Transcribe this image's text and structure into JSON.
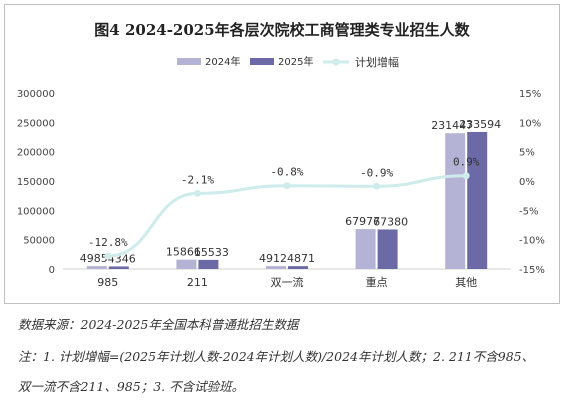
{
  "chart_data": {
    "type": "bar",
    "title": "图4  2024-2025年各层次院校工商管理类专业招生人数",
    "categories": [
      "985",
      "211",
      "双一流",
      "重点",
      "其他"
    ],
    "series": [
      {
        "name": "2024年",
        "type": "bar",
        "axis": "left",
        "values": [
          4985,
          15866,
          4912,
          67977,
          231447
        ],
        "color": "#b4b3d6"
      },
      {
        "name": "2025年",
        "type": "bar",
        "axis": "left",
        "values": [
          4346,
          15533,
          4871,
          67380,
          233594
        ],
        "color": "#6b6aa6"
      },
      {
        "name": "计划增幅",
        "type": "line",
        "axis": "right",
        "values": [
          -12.8,
          -2.1,
          -0.8,
          -0.9,
          0.9
        ],
        "labels": [
          "-12.8%",
          "-2.1%",
          "-0.8%",
          "-0.9%",
          "0.9%"
        ],
        "color": "#cdeceb"
      }
    ],
    "bar_labels": [
      [
        "4985",
        "15866",
        "4912",
        "67977",
        "231447"
      ],
      [
        "4346",
        "15533",
        "4871",
        "67380",
        "233594"
      ]
    ],
    "y_left": {
      "min": 0,
      "max": 300000,
      "ticks": [
        "0",
        "50000",
        "100000",
        "150000",
        "200000",
        "250000",
        "300000"
      ],
      "values": [
        0,
        50000,
        100000,
        150000,
        200000,
        250000,
        300000
      ]
    },
    "y_right": {
      "min": -15,
      "max": 15,
      "ticks": [
        "-15%",
        "-10%",
        "-5%",
        "0%",
        "5%",
        "10%",
        "15%"
      ],
      "values": [
        -15,
        -10,
        -5,
        0,
        5,
        10,
        15
      ]
    },
    "legend_position": "top-center",
    "grid": false
  },
  "notes": {
    "source": "数据来源：2024-2025年全国本科普通批招生数据",
    "line1": "注：1. 计划增幅=(2025年计划人数-2024年计划人数)/2024年计划人数；2. 211不含985、",
    "line2": "双一流不含211、985；3. 不含试验班。"
  }
}
